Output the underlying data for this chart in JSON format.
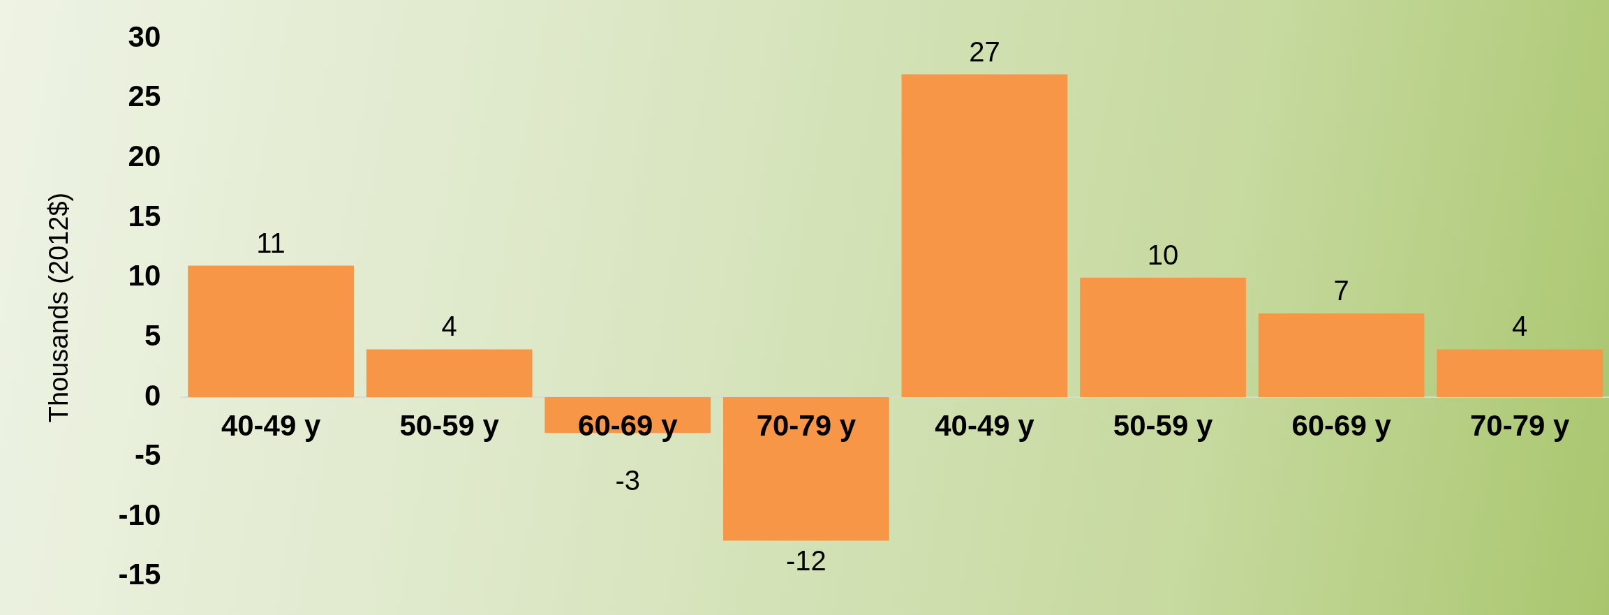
{
  "chart_data": {
    "type": "bar",
    "ylabel": "Thousands (2012$)",
    "categories": [
      "40-49 y",
      "50-59 y",
      "60-69 y",
      "70-79 y",
      "40-49 y",
      "50-59 y",
      "60-69 y",
      "70-79 y"
    ],
    "values": [
      11,
      4,
      -3,
      -12,
      27,
      10,
      7,
      4
    ],
    "color": "#f79646",
    "ylim": [
      -15,
      30
    ],
    "yticks": [
      -15,
      -10,
      -5,
      0,
      5,
      10,
      15,
      20,
      25,
      30
    ],
    "data_labels": true,
    "grid": false,
    "legend": false
  }
}
